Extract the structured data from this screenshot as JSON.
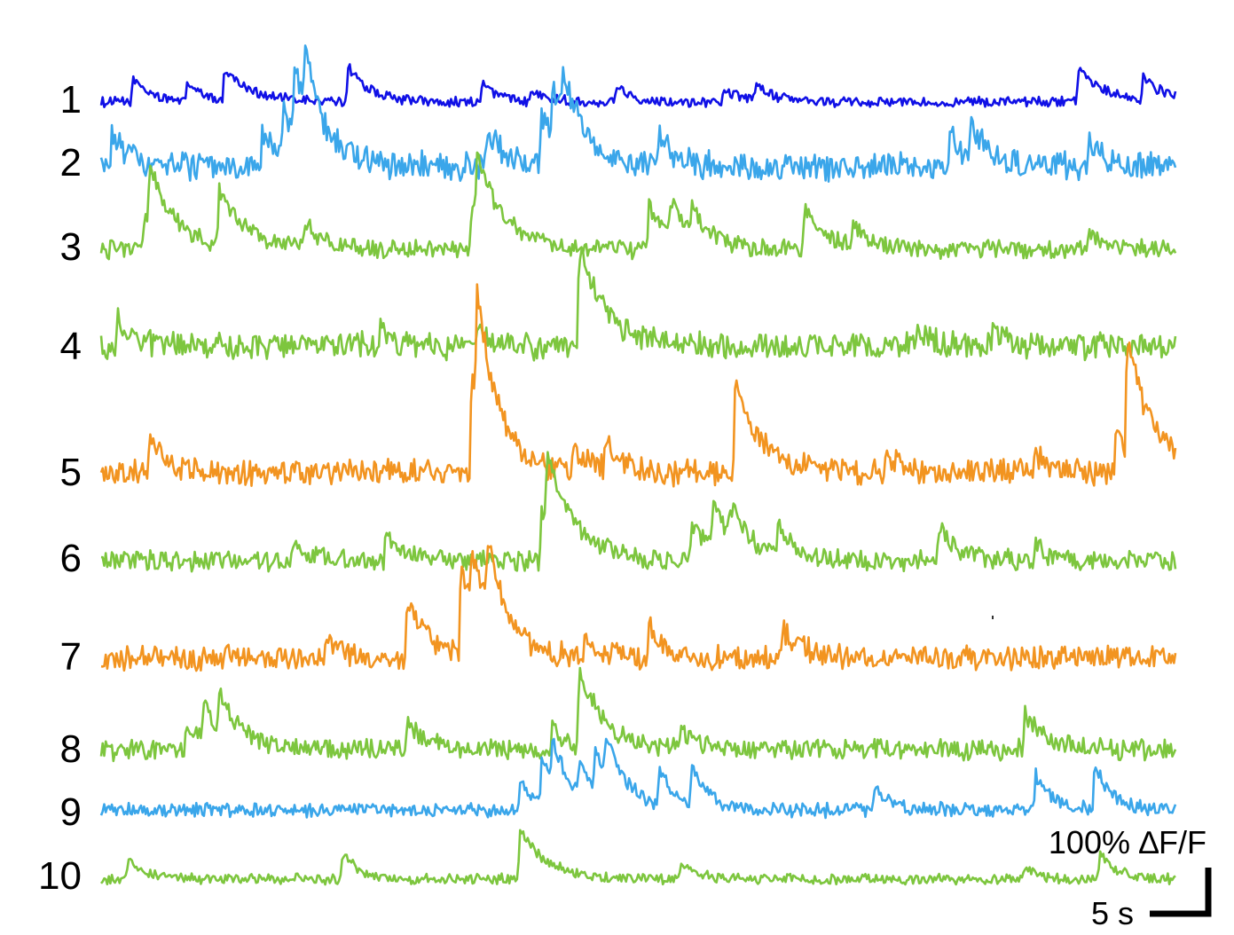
{
  "chart_data": {
    "type": "line",
    "title": "",
    "xlabel": "",
    "ylabel": "",
    "series": [
      {
        "id": "1",
        "color": "#1010e6",
        "noise": 0.05,
        "peaks": [
          [
            0.03,
            0.28,
            1.5
          ],
          [
            0.08,
            0.22,
            1.5
          ],
          [
            0.115,
            0.36,
            2.5
          ],
          [
            0.23,
            0.4,
            2
          ],
          [
            0.355,
            0.22,
            1.5
          ],
          [
            0.4,
            0.15,
            1.5
          ],
          [
            0.48,
            0.18,
            1.5
          ],
          [
            0.58,
            0.15,
            1.5
          ],
          [
            0.61,
            0.2,
            1.5
          ],
          [
            0.91,
            0.35,
            2.5
          ],
          [
            0.97,
            0.25,
            2
          ]
        ]
      },
      {
        "id": "2",
        "color": "#3aa6ea",
        "noise": 0.14,
        "peaks": [
          [
            0.01,
            0.35,
            1.5
          ],
          [
            0.15,
            0.4,
            2
          ],
          [
            0.17,
            0.55,
            2
          ],
          [
            0.18,
            0.7,
            2
          ],
          [
            0.19,
            0.6,
            2
          ],
          [
            0.36,
            0.45,
            1.5
          ],
          [
            0.41,
            0.55,
            2
          ],
          [
            0.42,
            0.6,
            2
          ],
          [
            0.43,
            0.55,
            2
          ],
          [
            0.52,
            0.35,
            1.5
          ],
          [
            0.79,
            0.4,
            1.5
          ],
          [
            0.81,
            0.45,
            1.5
          ],
          [
            0.92,
            0.3,
            1.5
          ]
        ]
      },
      {
        "id": "3",
        "color": "#7dc63e",
        "noise": 0.09,
        "peaks": [
          [
            0.04,
            0.35,
            2
          ],
          [
            0.045,
            0.7,
            2.5
          ],
          [
            0.11,
            0.65,
            2.5
          ],
          [
            0.19,
            0.3,
            1.5
          ],
          [
            0.345,
            0.55,
            2.5
          ],
          [
            0.35,
            0.6,
            2.5
          ],
          [
            0.51,
            0.45,
            2
          ],
          [
            0.53,
            0.4,
            2
          ],
          [
            0.55,
            0.3,
            1.5
          ],
          [
            0.655,
            0.45,
            2
          ],
          [
            0.7,
            0.25,
            1.5
          ],
          [
            0.92,
            0.2,
            1.5
          ]
        ]
      },
      {
        "id": "4",
        "color": "#7dc63e",
        "noise": 0.13,
        "peaks": [
          [
            0.015,
            0.3,
            1.5
          ],
          [
            0.26,
            0.2,
            1
          ],
          [
            0.35,
            0.22,
            1
          ],
          [
            0.445,
            1.1,
            2.5
          ],
          [
            0.76,
            0.2,
            1
          ],
          [
            0.83,
            0.18,
            1
          ]
        ]
      },
      {
        "id": "5",
        "color": "#f29420",
        "noise": 0.13,
        "peaks": [
          [
            0.045,
            0.45,
            1.5
          ],
          [
            0.345,
            1.2,
            2
          ],
          [
            0.35,
            1.1,
            2
          ],
          [
            0.44,
            0.3,
            1.5
          ],
          [
            0.47,
            0.3,
            1.5
          ],
          [
            0.59,
            1.0,
            2.5
          ],
          [
            0.73,
            0.25,
            1
          ],
          [
            0.87,
            0.25,
            1
          ],
          [
            0.945,
            0.5,
            1.5
          ],
          [
            0.955,
            1.3,
            2.5
          ]
        ]
      },
      {
        "id": "6",
        "color": "#7dc63e",
        "noise": 0.1,
        "peaks": [
          [
            0.18,
            0.2,
            1.5
          ],
          [
            0.265,
            0.3,
            1.5
          ],
          [
            0.41,
            0.6,
            2.5
          ],
          [
            0.415,
            0.75,
            2.5
          ],
          [
            0.55,
            0.4,
            2
          ],
          [
            0.57,
            0.45,
            2
          ],
          [
            0.585,
            0.4,
            2
          ],
          [
            0.63,
            0.35,
            1.5
          ],
          [
            0.78,
            0.35,
            2
          ],
          [
            0.87,
            0.2,
            1
          ]
        ]
      },
      {
        "id": "7",
        "color": "#f29420",
        "noise": 0.12,
        "peaks": [
          [
            0.21,
            0.25,
            1.5
          ],
          [
            0.285,
            0.65,
            2
          ],
          [
            0.335,
            0.95,
            2
          ],
          [
            0.345,
            0.65,
            2
          ],
          [
            0.36,
            0.75,
            2
          ],
          [
            0.45,
            0.25,
            1.5
          ],
          [
            0.51,
            0.35,
            1.5
          ],
          [
            0.635,
            0.3,
            2
          ]
        ]
      },
      {
        "id": "8",
        "color": "#7dc63e",
        "noise": 0.1,
        "peaks": [
          [
            0.08,
            0.3,
            2
          ],
          [
            0.095,
            0.35,
            2
          ],
          [
            0.11,
            0.45,
            2
          ],
          [
            0.285,
            0.35,
            1.5
          ],
          [
            0.42,
            0.25,
            1.5
          ],
          [
            0.445,
            0.85,
            2.5
          ],
          [
            0.54,
            0.2,
            1.5
          ],
          [
            0.86,
            0.4,
            2
          ]
        ]
      },
      {
        "id": "9",
        "color": "#3aa6ea",
        "noise": 0.07,
        "peaks": [
          [
            0.39,
            0.3,
            1.5
          ],
          [
            0.41,
            0.5,
            2
          ],
          [
            0.42,
            0.45,
            2
          ],
          [
            0.445,
            0.35,
            1.5
          ],
          [
            0.46,
            0.45,
            2
          ],
          [
            0.47,
            0.45,
            2
          ],
          [
            0.52,
            0.4,
            1.5
          ],
          [
            0.55,
            0.45,
            1.5
          ],
          [
            0.72,
            0.25,
            1.5
          ],
          [
            0.87,
            0.4,
            1.5
          ],
          [
            0.925,
            0.55,
            1.5
          ]
        ]
      },
      {
        "id": "10",
        "color": "#7dc63e",
        "noise": 0.05,
        "peaks": [
          [
            0.025,
            0.25,
            1.5
          ],
          [
            0.225,
            0.3,
            1.5
          ],
          [
            0.39,
            0.55,
            2.5
          ],
          [
            0.54,
            0.2,
            1.5
          ],
          [
            0.86,
            0.15,
            1
          ],
          [
            0.93,
            0.3,
            1.5
          ]
        ]
      }
    ],
    "scale_bar": {
      "y_label": "100% ∆F/F",
      "x_label": "5 s",
      "y_value_percent": 100,
      "x_value_seconds": 5
    }
  }
}
